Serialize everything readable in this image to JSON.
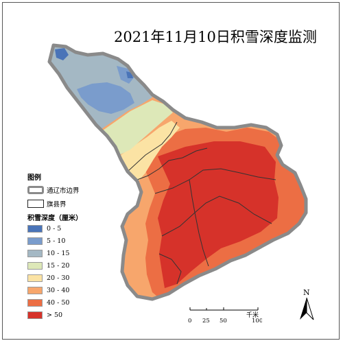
{
  "title": "2021年11月10日积雪深度监测",
  "legend": {
    "heading": "图例",
    "city_boundary_label": "通辽市边界",
    "banner_boundary_label": "旗县界",
    "classes_heading": "积雪深度（厘米）",
    "classes": [
      {
        "label": "0 - 5",
        "color": "#4a74b8"
      },
      {
        "label": "5 - 10",
        "color": "#7a9ccc"
      },
      {
        "label": "10 - 15",
        "color": "#a4b8c4"
      },
      {
        "label": "15 - 20",
        "color": "#dde8b8"
      },
      {
        "label": "20 - 30",
        "color": "#fbe3a4"
      },
      {
        "label": "30 - 40",
        "color": "#f7a66c"
      },
      {
        "label": "40 - 50",
        "color": "#ec6e44"
      },
      {
        "label": "> 50",
        "color": "#d6322a"
      }
    ]
  },
  "scale_bar": {
    "unit": "千米",
    "ticks": [
      "0",
      "25",
      "50",
      "100"
    ]
  },
  "north_arrow": {
    "label": "N"
  },
  "colors": {
    "city_boundary": "#8a8a8a",
    "banner_boundary": "#333333"
  }
}
